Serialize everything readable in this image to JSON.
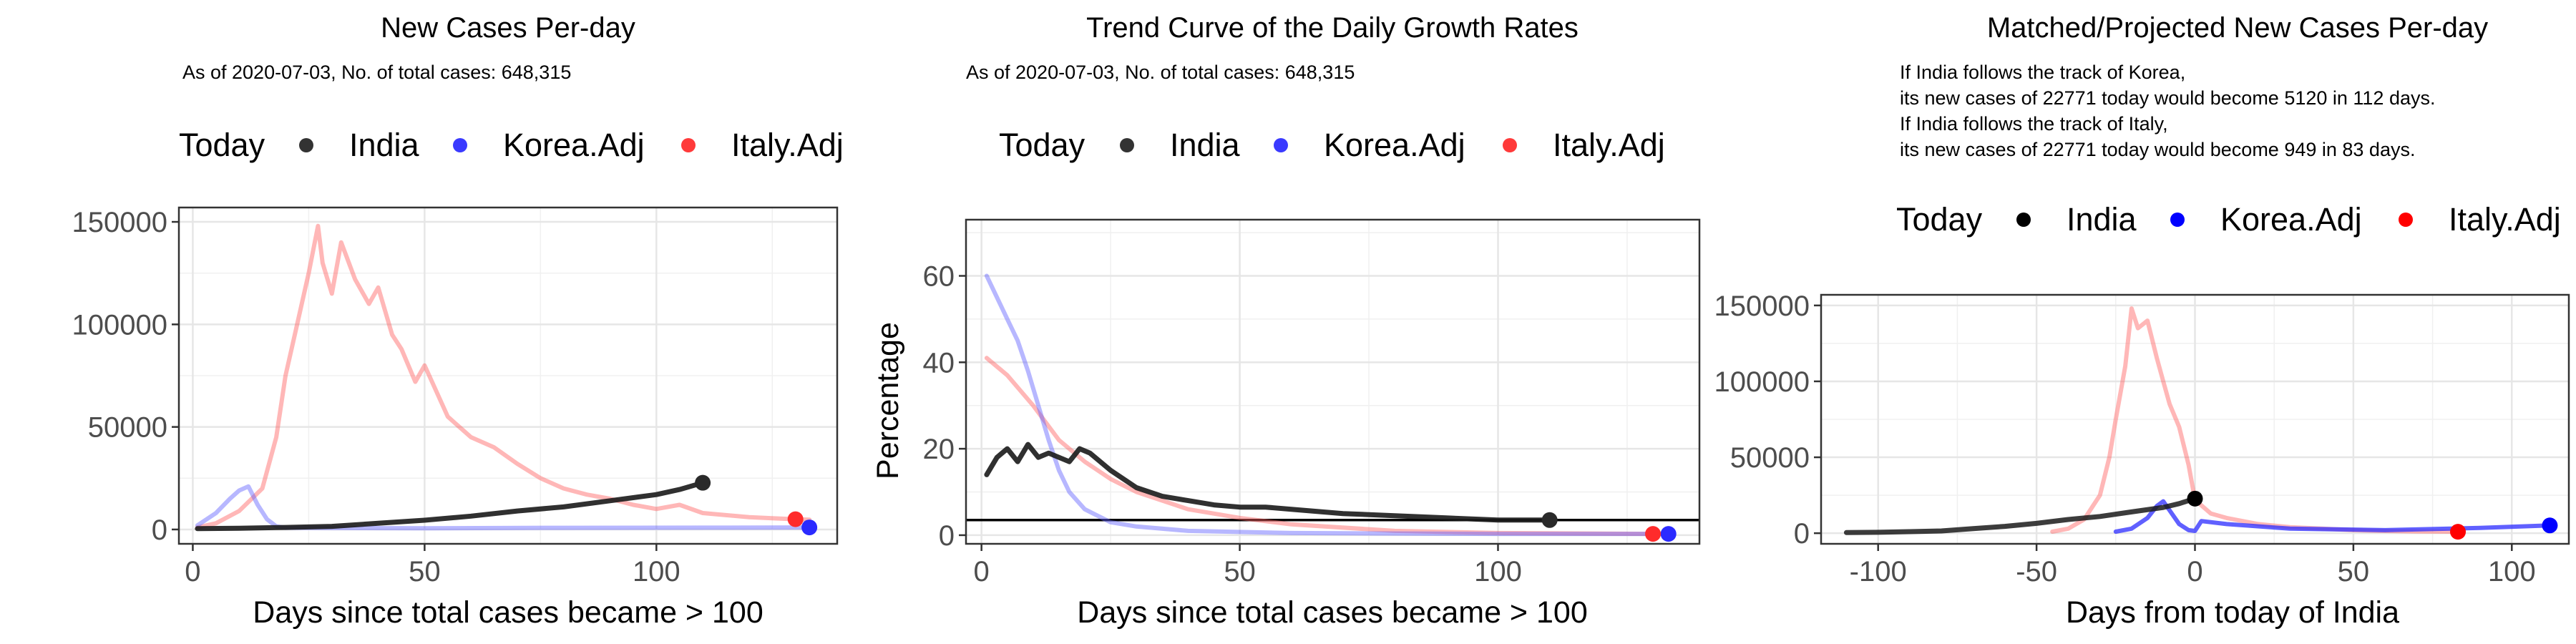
{
  "panels": [
    {
      "title": "New Cases Per-day",
      "subtitle": [
        "As of 2020-07-03, No. of total cases: 648,315"
      ],
      "legend": {
        "title": "Today",
        "items": [
          "India",
          "Korea.Adj",
          "Italy.Adj"
        ]
      },
      "xlabel": "Days since total cases became > 100",
      "ylabel": ""
    },
    {
      "title": "Trend Curve of the Daily Growth Rates",
      "subtitle": [
        "As of 2020-07-03, No. of total cases: 648,315"
      ],
      "legend": {
        "title": "Today",
        "items": [
          "India",
          "Korea.Adj",
          "Italy.Adj"
        ]
      },
      "xlabel": "Days since total cases became > 100",
      "ylabel": "Percentage"
    },
    {
      "title": "Matched/Projected New Cases Per-day",
      "subtitle": [
        "If India follows the track of Korea,",
        "its new cases of 22771 today would become 5120 in 112 days.",
        "If India follows the track of Italy,",
        "its new cases of 22771 today would become 949 in 83 days."
      ],
      "legend": {
        "title": "Today",
        "items": [
          "India",
          "Korea.Adj",
          "Italy.Adj"
        ]
      },
      "xlabel": "Days from today of India",
      "ylabel": ""
    }
  ],
  "colors": {
    "india": "#1a1a1a",
    "korea": "#2b2bff",
    "italy": "#ff2b2b",
    "korea_faint": "#aaaaff",
    "italy_faint": "#ffb0b0"
  },
  "chart_data": [
    {
      "type": "line",
      "title": "New Cases Per-day",
      "xlabel": "Days since total cases became > 100",
      "ylabel": "",
      "xlim": [
        -3,
        139
      ],
      "ylim": [
        -7000,
        157000
      ],
      "xticks": [
        0,
        50,
        100
      ],
      "yticks": [
        0,
        50000,
        100000,
        150000
      ],
      "series": [
        {
          "name": "India",
          "x": [
            1,
            10,
            20,
            30,
            40,
            50,
            60,
            70,
            80,
            90,
            100,
            105,
            110
          ],
          "y": [
            400,
            600,
            1000,
            1500,
            3000,
            4500,
            6500,
            9000,
            11000,
            14000,
            17000,
            19500,
            22771
          ]
        },
        {
          "name": "Korea.Adj",
          "x": [
            1,
            5,
            8,
            10,
            12,
            14,
            16,
            18,
            20,
            30,
            50,
            80,
            110,
            133
          ],
          "y": [
            2000,
            8000,
            15000,
            19000,
            21000,
            12000,
            5000,
            1500,
            800,
            700,
            600,
            800,
            900,
            1000
          ]
        },
        {
          "name": "Italy.Adj",
          "x": [
            1,
            5,
            10,
            15,
            18,
            20,
            22,
            25,
            27,
            28,
            30,
            32,
            35,
            38,
            40,
            43,
            45,
            48,
            50,
            55,
            60,
            65,
            70,
            75,
            80,
            85,
            90,
            95,
            100,
            105,
            110,
            115,
            120,
            125,
            130,
            133
          ],
          "y": [
            1000,
            3000,
            9000,
            20000,
            45000,
            75000,
            95000,
            125000,
            148000,
            130000,
            115000,
            140000,
            122000,
            110000,
            118000,
            95000,
            88000,
            72000,
            80000,
            55000,
            45000,
            40000,
            32000,
            25000,
            20000,
            17000,
            15000,
            12000,
            10000,
            12000,
            8000,
            7000,
            6000,
            5500,
            5000,
            4800
          ]
        }
      ],
      "today_points": [
        {
          "name": "India",
          "x": 110,
          "y": 22771
        },
        {
          "name": "Korea.Adj",
          "x": 133,
          "y": 1000
        },
        {
          "name": "Italy.Adj",
          "x": 130,
          "y": 5000
        }
      ]
    },
    {
      "type": "line",
      "title": "Trend Curve of the Daily Growth Rates",
      "xlabel": "Days since total cases became > 100",
      "ylabel": "Percentage",
      "xlim": [
        -3,
        139
      ],
      "ylim": [
        -2,
        73
      ],
      "xticks": [
        0,
        50,
        100
      ],
      "yticks": [
        0,
        20,
        40,
        60
      ],
      "hline": 3.5,
      "series": [
        {
          "name": "India",
          "x": [
            1,
            3,
            5,
            7,
            9,
            11,
            13,
            15,
            17,
            19,
            21,
            25,
            30,
            35,
            40,
            45,
            50,
            55,
            60,
            70,
            80,
            90,
            100,
            110
          ],
          "y": [
            14,
            18,
            20,
            17,
            21,
            18,
            19,
            18,
            17,
            20,
            19,
            15,
            11,
            9,
            8,
            7,
            6.5,
            6.5,
            6,
            5,
            4.5,
            4,
            3.5,
            3.5
          ]
        },
        {
          "name": "Korea.Adj",
          "x": [
            1,
            3,
            5,
            7,
            9,
            11,
            13,
            15,
            17,
            20,
            25,
            30,
            40,
            60,
            100,
            133
          ],
          "y": [
            60,
            55,
            50,
            45,
            38,
            30,
            22,
            15,
            10,
            6,
            3,
            2,
            1,
            0.5,
            0.3,
            0.3
          ]
        },
        {
          "name": "Italy.Adj",
          "x": [
            1,
            5,
            10,
            15,
            20,
            25,
            30,
            40,
            50,
            60,
            80,
            100,
            130
          ],
          "y": [
            41,
            37,
            30,
            22,
            17,
            13,
            10,
            6,
            4,
            2.5,
            1,
            0.5,
            0.3
          ]
        }
      ],
      "today_points": [
        {
          "name": "India",
          "x": 110,
          "y": 3.5
        },
        {
          "name": "Korea.Adj",
          "x": 133,
          "y": 0.3
        },
        {
          "name": "Italy.Adj",
          "x": 130,
          "y": 0.3
        }
      ]
    },
    {
      "type": "line",
      "title": "Matched/Projected New Cases Per-day",
      "xlabel": "Days from today of India",
      "ylabel": "",
      "xlim": [
        -118,
        118
      ],
      "ylim": [
        -7000,
        157000
      ],
      "xticks": [
        -100,
        -50,
        0,
        50,
        100
      ],
      "yticks": [
        0,
        50000,
        100000,
        150000
      ],
      "series": [
        {
          "name": "India",
          "x": [
            -110,
            -100,
            -90,
            -80,
            -70,
            -60,
            -50,
            -40,
            -30,
            -20,
            -10,
            -5,
            0
          ],
          "y": [
            400,
            600,
            1000,
            1500,
            3000,
            4500,
            6500,
            9000,
            11000,
            14000,
            17000,
            19500,
            22771
          ]
        },
        {
          "name": "Korea.Adj",
          "x": [
            -25,
            -20,
            -15,
            -12,
            -10,
            -8,
            -5,
            -2,
            0,
            2,
            10,
            30,
            60,
            90,
            112
          ],
          "y": [
            1000,
            3000,
            10000,
            18000,
            21000,
            15000,
            6000,
            2000,
            1500,
            8000,
            6000,
            3000,
            2000,
            3500,
            5120
          ]
        },
        {
          "name": "Italy.Adj",
          "x": [
            -45,
            -40,
            -35,
            -30,
            -27,
            -25,
            -22,
            -20,
            -18,
            -15,
            -12,
            -10,
            -8,
            -5,
            -2,
            0,
            5,
            10,
            20,
            30,
            40,
            50,
            60,
            70,
            83
          ],
          "y": [
            1000,
            3000,
            9000,
            25000,
            50000,
            75000,
            110000,
            148000,
            135000,
            140000,
            115000,
            100000,
            85000,
            70000,
            45000,
            22000,
            13000,
            10000,
            6000,
            4000,
            3000,
            2000,
            1500,
            1200,
            949
          ]
        }
      ],
      "today_points": [
        {
          "name": "India",
          "x": 0,
          "y": 22771
        },
        {
          "name": "Korea.Adj",
          "x": 112,
          "y": 5120
        },
        {
          "name": "Italy.Adj",
          "x": 83,
          "y": 949
        }
      ]
    }
  ]
}
